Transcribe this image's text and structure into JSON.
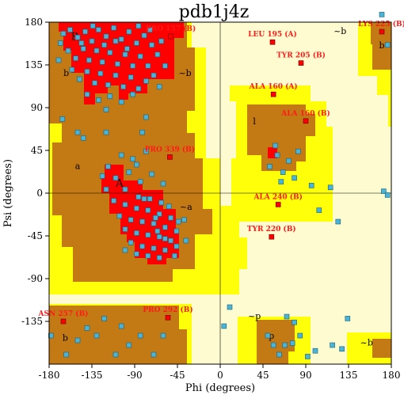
{
  "chart_data": {
    "type": "scatter",
    "title": "pdb1j4z",
    "xlabel": "Phi (degrees)",
    "ylabel": "Psi (degrees)",
    "xlim": [
      -180,
      180
    ],
    "ylim": [
      -180,
      180
    ],
    "x_ticks": [
      -180,
      -135,
      -90,
      -45,
      0,
      45,
      90,
      135,
      180
    ],
    "y_ticks": [
      180,
      135,
      90,
      45,
      0,
      -45,
      -90,
      -135
    ],
    "colors": {
      "most_favoured": "#ff0000",
      "additional_allowed": "#c47a14",
      "generously_allowed": "#ffff0a",
      "disallowed": "#fffbd0",
      "residue": "#49b4d8",
      "outlier": "#ff0000"
    },
    "region_labels": [
      {
        "text": "B",
        "phi": -153,
        "psi": 164
      },
      {
        "text": "b",
        "phi": -162,
        "psi": 126
      },
      {
        "text": "~b",
        "phi": -37,
        "psi": 126
      },
      {
        "text": "l",
        "phi": 36,
        "psi": 75
      },
      {
        "text": "a",
        "phi": -150,
        "psi": 28
      },
      {
        "text": "A",
        "phi": -106,
        "psi": 10
      },
      {
        "text": "~a",
        "phi": -36,
        "psi": -15
      },
      {
        "text": "~b",
        "phi": 126,
        "psi": 170
      },
      {
        "text": "b",
        "phi": 170,
        "psi": 155
      },
      {
        "text": "b",
        "phi": -163,
        "psi": -153
      },
      {
        "text": "~p",
        "phi": 36,
        "psi": -130
      },
      {
        "text": "p",
        "phi": 54,
        "psi": -151
      },
      {
        "text": "~b",
        "phi": 154,
        "psi": -158
      }
    ],
    "outliers": [
      {
        "label": "PRO 157 (B)",
        "phi": -52,
        "psi": 165
      },
      {
        "label": "LEU 195 (A)",
        "phi": 55,
        "psi": 159
      },
      {
        "label": "LYS 225 (B)",
        "phi": 170,
        "psi": 170
      },
      {
        "label": "TYR 205 (B)",
        "phi": 85,
        "psi": 137
      },
      {
        "label": "ALA 160 (A)",
        "phi": 56,
        "psi": 104
      },
      {
        "label": "ALA 160 (B)",
        "phi": 90,
        "psi": 76
      },
      {
        "label": "PRO 339 (B)",
        "phi": -53,
        "psi": 38
      },
      {
        "label": "ALA 240 (B)",
        "phi": 61,
        "psi": -12
      },
      {
        "label": "TYR 220 (B)",
        "phi": 54,
        "psi": -46
      },
      {
        "label": "ASN 257 (B)",
        "phi": -165,
        "psi": -135
      },
      {
        "label": "PRO 292 (B)",
        "phi": -55,
        "psi": -131
      }
    ],
    "residues": [
      {
        "phi": -165,
        "psi": 168
      },
      {
        "phi": -158,
        "psi": 172
      },
      {
        "phi": -150,
        "psi": 164
      },
      {
        "phi": -142,
        "psi": 170
      },
      {
        "phi": -135,
        "psi": 160
      },
      {
        "phi": -128,
        "psi": 172
      },
      {
        "phi": -120,
        "psi": 165
      },
      {
        "phi": -112,
        "psi": 174
      },
      {
        "phi": -104,
        "psi": 162
      },
      {
        "phi": -96,
        "psi": 170
      },
      {
        "phi": -88,
        "psi": 158
      },
      {
        "phi": -80,
        "psi": 166
      },
      {
        "phi": -72,
        "psi": 156
      },
      {
        "phi": -66,
        "psi": 146
      },
      {
        "phi": -160,
        "psi": 150
      },
      {
        "phi": -152,
        "psi": 142
      },
      {
        "phi": -144,
        "psi": 152
      },
      {
        "phi": -138,
        "psi": 140
      },
      {
        "phi": -130,
        "psi": 150
      },
      {
        "phi": -124,
        "psi": 138
      },
      {
        "phi": -116,
        "psi": 148
      },
      {
        "phi": -108,
        "psi": 136
      },
      {
        "phi": -100,
        "psi": 146
      },
      {
        "phi": -92,
        "psi": 134
      },
      {
        "phi": -84,
        "psi": 144
      },
      {
        "phi": -76,
        "psi": 134
      },
      {
        "phi": -70,
        "psi": 124
      },
      {
        "phi": -156,
        "psi": 130
      },
      {
        "phi": -148,
        "psi": 120
      },
      {
        "phi": -140,
        "psi": 128
      },
      {
        "phi": -132,
        "psi": 116
      },
      {
        "phi": -126,
        "psi": 126
      },
      {
        "phi": -118,
        "psi": 114
      },
      {
        "phi": -110,
        "psi": 124
      },
      {
        "phi": -102,
        "psi": 112
      },
      {
        "phi": -94,
        "psi": 122
      },
      {
        "phi": -86,
        "psi": 110
      },
      {
        "phi": -78,
        "psi": 118
      },
      {
        "phi": -140,
        "psi": 104
      },
      {
        "phi": -128,
        "psi": 98
      },
      {
        "phi": -116,
        "psi": 102
      },
      {
        "phi": -104,
        "psi": 96
      },
      {
        "phi": -92,
        "psi": 104
      },
      {
        "phi": -120,
        "psi": 88
      },
      {
        "phi": -146,
        "psi": 158
      },
      {
        "phi": -134,
        "psi": 176
      },
      {
        "phi": -122,
        "psi": 156
      },
      {
        "phi": -110,
        "psi": 160
      },
      {
        "phi": -98,
        "psi": 152
      },
      {
        "phi": -86,
        "psi": 176
      },
      {
        "phi": -74,
        "psi": 172
      },
      {
        "phi": -62,
        "psi": 160
      },
      {
        "phi": -170,
        "psi": 140
      },
      {
        "phi": -168,
        "psi": 158
      },
      {
        "phi": -58,
        "psi": 134
      },
      {
        "phi": -64,
        "psi": 112
      },
      {
        "phi": -150,
        "psi": 64
      },
      {
        "phi": -144,
        "psi": 58
      },
      {
        "phi": -78,
        "psi": 80
      },
      {
        "phi": -82,
        "psi": 64
      },
      {
        "phi": -88,
        "psi": 30
      },
      {
        "phi": -96,
        "psi": 22
      },
      {
        "phi": -110,
        "psi": 16
      },
      {
        "phi": -118,
        "psi": 28
      },
      {
        "phi": -124,
        "psi": 18
      },
      {
        "phi": -120,
        "psi": 4
      },
      {
        "phi": -84,
        "psi": 12
      },
      {
        "phi": -72,
        "psi": 20
      },
      {
        "phi": -60,
        "psi": 10
      },
      {
        "phi": -100,
        "psi": 4
      },
      {
        "phi": -86,
        "psi": -4
      },
      {
        "phi": -74,
        "psi": -6
      },
      {
        "phi": -62,
        "psi": -10
      },
      {
        "phi": -54,
        "psi": -14
      },
      {
        "phi": -112,
        "psi": -8
      },
      {
        "phi": -100,
        "psi": -12
      },
      {
        "phi": -88,
        "psi": -16
      },
      {
        "phi": -76,
        "psi": -18
      },
      {
        "phi": -64,
        "psi": -22
      },
      {
        "phi": -52,
        "psi": -26
      },
      {
        "phi": -44,
        "psi": -30
      },
      {
        "phi": -106,
        "psi": -24
      },
      {
        "phi": -94,
        "psi": -28
      },
      {
        "phi": -82,
        "psi": -30
      },
      {
        "phi": -70,
        "psi": -32
      },
      {
        "phi": -58,
        "psi": -36
      },
      {
        "phi": -46,
        "psi": -40
      },
      {
        "phi": -100,
        "psi": -38
      },
      {
        "phi": -88,
        "psi": -42
      },
      {
        "phi": -76,
        "psi": -44
      },
      {
        "phi": -64,
        "psi": -46
      },
      {
        "phi": -52,
        "psi": -50
      },
      {
        "phi": -94,
        "psi": -52
      },
      {
        "phi": -82,
        "psi": -56
      },
      {
        "phi": -70,
        "psi": -58
      },
      {
        "phi": -58,
        "psi": -60
      },
      {
        "phi": -46,
        "psi": -56
      },
      {
        "phi": -88,
        "psi": -64
      },
      {
        "phi": -76,
        "psi": -66
      },
      {
        "phi": -64,
        "psi": -68
      },
      {
        "phi": -80,
        "psi": -6
      },
      {
        "phi": -66,
        "psi": -40
      },
      {
        "phi": -58,
        "psi": -48
      },
      {
        "phi": -68,
        "psi": -26
      },
      {
        "phi": -92,
        "psi": 36
      },
      {
        "phi": -104,
        "psi": 40
      },
      {
        "phi": -78,
        "psi": 44
      },
      {
        "phi": 60,
        "psi": 40
      },
      {
        "phi": 52,
        "psi": 28
      },
      {
        "phi": 66,
        "psi": 22
      },
      {
        "phi": 72,
        "psi": 34
      },
      {
        "phi": 78,
        "psi": 16
      },
      {
        "phi": 64,
        "psi": 12
      },
      {
        "phi": 58,
        "psi": 50
      },
      {
        "phi": 82,
        "psi": 44
      },
      {
        "phi": 96,
        "psi": 8
      },
      {
        "phi": 116,
        "psi": 6
      },
      {
        "phi": 124,
        "psi": -30
      },
      {
        "phi": 104,
        "psi": -18
      },
      {
        "phi": 170,
        "psi": 188
      },
      {
        "phi": 176,
        "psi": 156
      },
      {
        "phi": 172,
        "psi": 2
      },
      {
        "phi": 176,
        "psi": -2
      },
      {
        "phi": 4,
        "psi": -140
      },
      {
        "phi": 10,
        "psi": -120
      },
      {
        "phi": 50,
        "psi": -150
      },
      {
        "phi": 56,
        "psi": -160
      },
      {
        "phi": 62,
        "psi": -170
      },
      {
        "phi": 68,
        "psi": -160
      },
      {
        "phi": 76,
        "psi": -158
      },
      {
        "phi": 84,
        "psi": -150
      },
      {
        "phi": 78,
        "psi": -136
      },
      {
        "phi": 70,
        "psi": -130
      },
      {
        "phi": 118,
        "psi": -160
      },
      {
        "phi": 128,
        "psi": -164
      },
      {
        "phi": 134,
        "psi": -132
      },
      {
        "phi": 100,
        "psi": -166
      },
      {
        "phi": 92,
        "psi": -172
      },
      {
        "phi": -140,
        "psi": -142
      },
      {
        "phi": -150,
        "psi": -155
      },
      {
        "phi": -130,
        "psi": -150
      },
      {
        "phi": -122,
        "psi": -132
      },
      {
        "phi": -104,
        "psi": -140
      },
      {
        "phi": -96,
        "psi": -160
      },
      {
        "phi": -84,
        "psi": -150
      },
      {
        "phi": -70,
        "psi": -170
      },
      {
        "phi": -60,
        "psi": -150
      },
      {
        "phi": -110,
        "psi": -170
      },
      {
        "phi": -178,
        "psi": -150
      },
      {
        "phi": -162,
        "psi": -170
      },
      {
        "phi": -166,
        "psi": 78
      },
      {
        "phi": -120,
        "psi": 64
      },
      {
        "phi": -38,
        "psi": -28
      },
      {
        "phi": -36,
        "psi": -50
      },
      {
        "phi": -48,
        "psi": -66
      },
      {
        "phi": -100,
        "psi": -60
      }
    ]
  }
}
